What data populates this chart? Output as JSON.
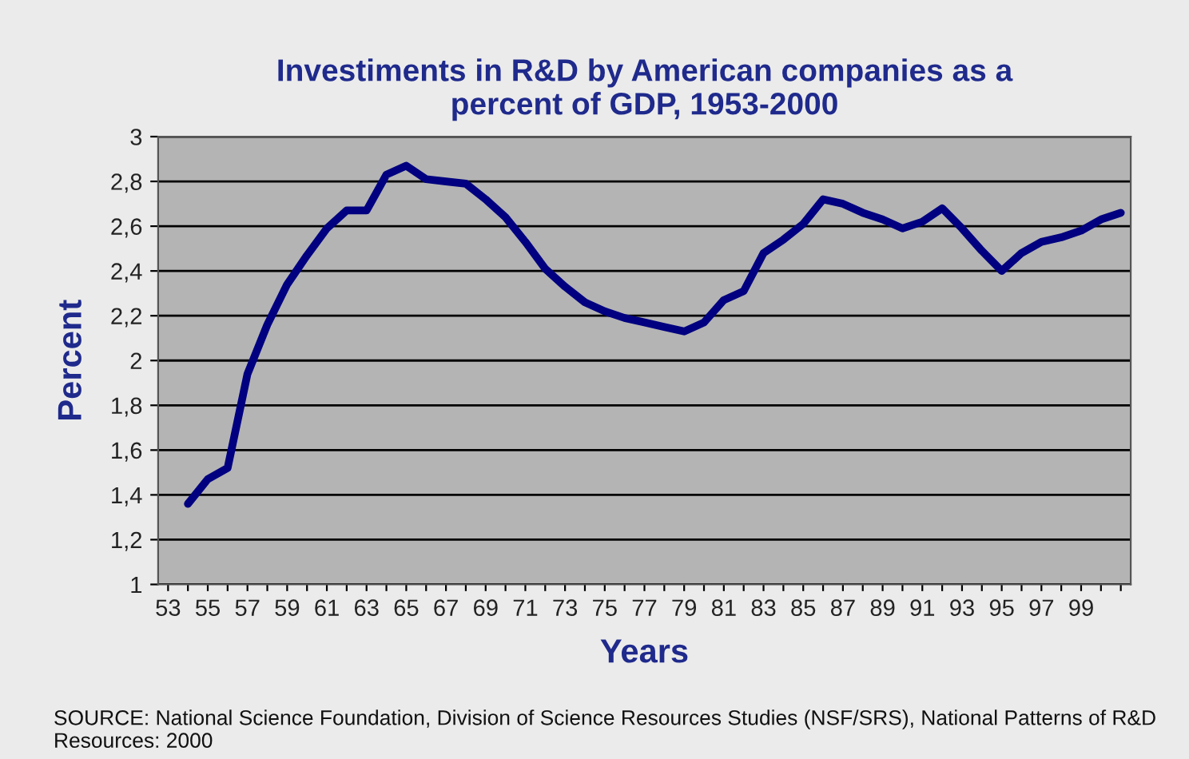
{
  "chart_data": {
    "type": "line",
    "title": "Investiments in R&D by American companies as a\npercent of GDP, 1953-2000",
    "xlabel": "Years",
    "ylabel": "Percent",
    "categories": [
      "53",
      null,
      "55",
      null,
      "57",
      null,
      "59",
      null,
      "61",
      null,
      "63",
      null,
      "65",
      null,
      "67",
      null,
      "69",
      null,
      "71",
      null,
      "73",
      null,
      "75",
      null,
      "77",
      null,
      "79",
      null,
      "81",
      null,
      "83",
      null,
      "85",
      null,
      "87",
      null,
      "89",
      null,
      "91",
      null,
      "93",
      null,
      "95",
      null,
      "97",
      null,
      "99",
      null,
      null
    ],
    "series": [
      {
        "color": "#000080",
        "values": [
          null,
          1.36,
          1.47,
          1.52,
          1.94,
          2.16,
          2.34,
          2.47,
          2.59,
          2.67,
          2.67,
          2.83,
          2.87,
          2.81,
          2.8,
          2.79,
          2.72,
          2.64,
          2.53,
          2.41,
          2.33,
          2.26,
          2.22,
          2.19,
          2.17,
          2.15,
          2.13,
          2.17,
          2.27,
          2.31,
          2.48,
          2.54,
          2.61,
          2.72,
          2.7,
          2.66,
          2.63,
          2.59,
          2.62,
          2.68,
          2.59,
          2.49,
          2.4,
          2.48,
          2.53,
          2.55,
          2.58,
          2.63,
          2.66
        ]
      }
    ],
    "ylim": [
      1,
      3
    ],
    "yticks": [
      1,
      {
        "value": 1.2,
        "label": "1,2"
      },
      {
        "value": 1.4,
        "label": "1,4"
      },
      {
        "value": 1.6,
        "label": "1,6"
      },
      {
        "value": 1.8,
        "label": "1,8"
      },
      2,
      {
        "value": 2.2,
        "label": "2,2"
      },
      {
        "value": 2.4,
        "label": "2,4"
      },
      {
        "value": 2.6,
        "label": "2,6"
      },
      {
        "value": 2.8,
        "label": "2,8"
      },
      3
    ],
    "grid": "y",
    "legend": false,
    "marker": "none",
    "line_style": "solid",
    "annotations": [
      "SOURCE: National Science Foundation, Division of Science Resources Studies (NSF/SRS), National Patterns of R&D Resources: 2000"
    ]
  }
}
